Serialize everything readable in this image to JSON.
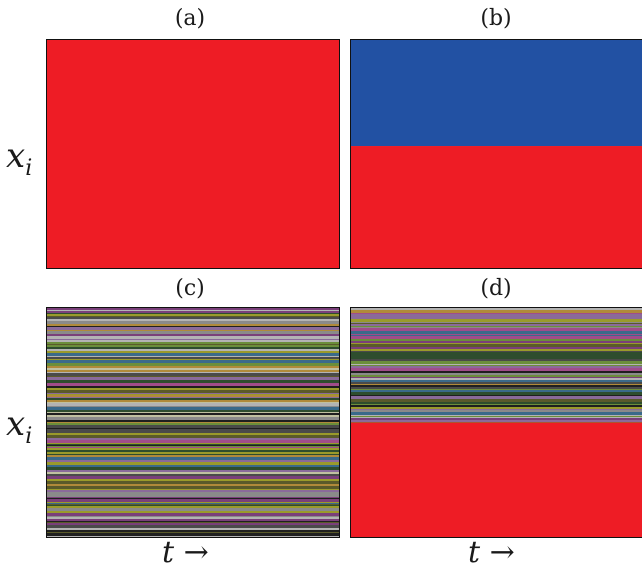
{
  "chart_data": [
    {
      "type": "heatmap",
      "title": "(a)",
      "ylabel": "x",
      "ylabel_sub": "i",
      "xlabel": "",
      "bands": [
        {
          "from": 0.0,
          "to": 1.0,
          "color": "#ee1c25"
        }
      ]
    },
    {
      "type": "heatmap",
      "title": "(b)",
      "ylabel": "",
      "xlabel": "",
      "bands": [
        {
          "from": 0.0,
          "to": 0.465,
          "color": "#2251a3"
        },
        {
          "from": 0.465,
          "to": 1.0,
          "color": "#ee1c25"
        }
      ]
    },
    {
      "type": "heatmap",
      "title": "(c)",
      "ylabel": "x",
      "ylabel_sub": "i",
      "xlabel": "t →",
      "bands": [
        {
          "from": 0.0,
          "to": 1.0,
          "color": "striped"
        }
      ]
    },
    {
      "type": "heatmap",
      "title": "(d)",
      "ylabel": "",
      "xlabel": "t →",
      "bands": [
        {
          "from": 0.0,
          "to": 0.5,
          "color": "striped"
        },
        {
          "from": 0.5,
          "to": 1.0,
          "color": "#ee1c25"
        }
      ]
    }
  ],
  "colors": {
    "red": "#ee1c25",
    "blue": "#2251a3",
    "stripe_palette": [
      "#1f1f1f",
      "#4a4a4a",
      "#8a8a8a",
      "#b3b3b3",
      "#6b8e3a",
      "#9a9a2b",
      "#b08a3a",
      "#7a3f7a",
      "#a04c8a",
      "#3a6a8a",
      "#5a5a2a",
      "#c0c0a0",
      "#2e4d2e",
      "#8a6a9a"
    ]
  }
}
